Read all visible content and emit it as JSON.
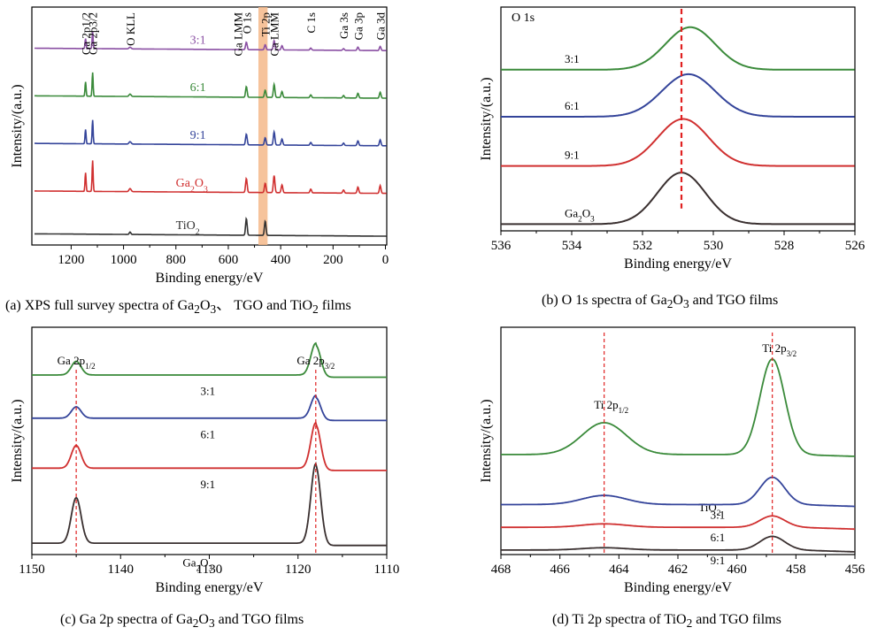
{
  "chart_data": [
    {
      "type": "line",
      "caption": {
        "prefix": "(a) XPS full survey spectra of Ga",
        "s1": "2",
        "mid1": "O",
        "s2": "3",
        "mid2": "、 TGO and TiO",
        "s3": "2",
        "suffix": " films"
      },
      "xlabel": "Binding energy/eV",
      "ylabel": "Intensity/(a.u.)",
      "xlim": [
        1350,
        -5
      ],
      "x_reversed": true,
      "xticks": [
        "1200",
        "1000",
        "800",
        "600",
        "400",
        "200",
        "0"
      ],
      "xtick_values": [
        1200,
        1000,
        800,
        600,
        400,
        200,
        0
      ],
      "highlight_band": {
        "from": 485,
        "to": 450,
        "color": "#f5b98a"
      },
      "series": [
        {
          "label": "3:1",
          "color": "#8a4fa3",
          "baseline": 0.82,
          "label_x": 780
        },
        {
          "label": "6:1",
          "color": "#3a8a3a",
          "baseline": 0.62,
          "label_x": 780
        },
        {
          "label": "9:1",
          "color": "#34449a",
          "baseline": 0.42,
          "label_x": 780
        },
        {
          "label": "Ga2O3",
          "color": "#d03030",
          "baseline": 0.22,
          "label_x": 780
        },
        {
          "label": "TiO2",
          "color": "#333333",
          "baseline": 0.04,
          "label_x": 780
        }
      ],
      "peaks": [
        {
          "label": "Ga 2p1/2",
          "x": 1145
        },
        {
          "label": "Ga 2p3/2",
          "x": 1118
        },
        {
          "label": "O KLL",
          "x": 975
        },
        {
          "label": "Ga LMM",
          "x": 565
        },
        {
          "label": "O 1s",
          "x": 531
        },
        {
          "label": "Ti 2p",
          "x": 459
        },
        {
          "label": "Ga LMM",
          "x": 425
        },
        {
          "label": "C 1s",
          "x": 285
        },
        {
          "label": "Ga 3s",
          "x": 160
        },
        {
          "label": "Ga 3p",
          "x": 105
        },
        {
          "label": "Ga 3d",
          "x": 20
        }
      ]
    },
    {
      "type": "line",
      "caption": {
        "prefix": "(b) O 1s spectra of Ga",
        "s1": "2",
        "mid1": "O",
        "s2": "3",
        "suffix": " and TGO films"
      },
      "title": "O 1s",
      "xlabel": "Binding energy/eV",
      "ylabel": "Intensity/(a.u.)",
      "xlim": [
        536,
        526
      ],
      "x_reversed": true,
      "xticks": [
        "536",
        "534",
        "532",
        "530",
        "528",
        "526"
      ],
      "xtick_values": [
        536,
        534,
        532,
        530,
        528,
        526
      ],
      "reference_line": 530.9,
      "series": [
        {
          "label": "3:1",
          "color": "#3a8a3a",
          "baseline": 0.72,
          "center": 530.65,
          "height": 0.19,
          "width": 0.7
        },
        {
          "label": "6:1",
          "color": "#34449a",
          "baseline": 0.51,
          "center": 530.7,
          "height": 0.19,
          "width": 0.75
        },
        {
          "label": "9:1",
          "color": "#d03030",
          "baseline": 0.29,
          "center": 530.85,
          "height": 0.21,
          "width": 0.72
        },
        {
          "label": "Ga2O3",
          "color": "#3a3030",
          "baseline": 0.03,
          "center": 530.9,
          "height": 0.23,
          "width": 0.68
        }
      ]
    },
    {
      "type": "line",
      "caption": {
        "prefix": "(c) Ga 2p spectra of Ga",
        "s1": "2",
        "mid1": "O",
        "s2": "3",
        "suffix": " and TGO films"
      },
      "xlabel": "Binding energy/eV",
      "ylabel": "Intensity/(a.u.)",
      "xlim": [
        1150,
        1110
      ],
      "x_reversed": true,
      "xticks": [
        "1150",
        "1140",
        "1130",
        "1120",
        "1110"
      ],
      "xtick_values": [
        1150,
        1140,
        1130,
        1120,
        1110
      ],
      "peak_labels": [
        {
          "main": "Ga 2p",
          "sub": "1/2",
          "x": 1145
        },
        {
          "main": "Ga 2p",
          "sub": "3/2",
          "x": 1118
        }
      ],
      "reference_lines": [
        1145,
        1118
      ],
      "series": [
        {
          "label": "3:1",
          "color": "#3a8a3a",
          "baseline": 0.78,
          "h1": 0.06,
          "h2": 0.14
        },
        {
          "label": "6:1",
          "color": "#34449a",
          "baseline": 0.59,
          "h1": 0.05,
          "h2": 0.1
        },
        {
          "label": "9:1",
          "color": "#d03030",
          "baseline": 0.37,
          "h1": 0.1,
          "h2": 0.2
        },
        {
          "label": "Ga2O3",
          "color": "#3a3030",
          "baseline": 0.04,
          "h1": 0.2,
          "h2": 0.35
        }
      ]
    },
    {
      "type": "line",
      "caption": {
        "prefix": "(d) Ti 2p spectra of TiO",
        "s1": "2",
        "suffix": " and TGO films"
      },
      "xlabel": "Binding energy/eV",
      "ylabel": "Intensity/(a.u.)",
      "xlim": [
        468,
        456
      ],
      "x_reversed": true,
      "xticks": [
        "468",
        "466",
        "464",
        "462",
        "460",
        "458",
        "456"
      ],
      "xtick_values": [
        468,
        466,
        464,
        462,
        460,
        458,
        456
      ],
      "peak_labels": [
        {
          "main": "Ti 2p",
          "sub": "1/2",
          "x": 464.5
        },
        {
          "main": "Ti 2p",
          "sub": "3/2",
          "x": 458.8
        }
      ],
      "reference_lines": [
        464.5,
        458.8
      ],
      "series": [
        {
          "label": "TiO2",
          "color": "#3a8a3a",
          "baseline": 0.44,
          "h1": 0.14,
          "h2": 0.42
        },
        {
          "label": "3:1",
          "color": "#34449a",
          "baseline": 0.22,
          "h1": 0.04,
          "h2": 0.12
        },
        {
          "label": "6:1",
          "color": "#d03030",
          "baseline": 0.12,
          "h1": 0.015,
          "h2": 0.05
        },
        {
          "label": "9:1",
          "color": "#3a3030",
          "baseline": 0.02,
          "h1": 0.01,
          "h2": 0.06
        }
      ]
    }
  ]
}
